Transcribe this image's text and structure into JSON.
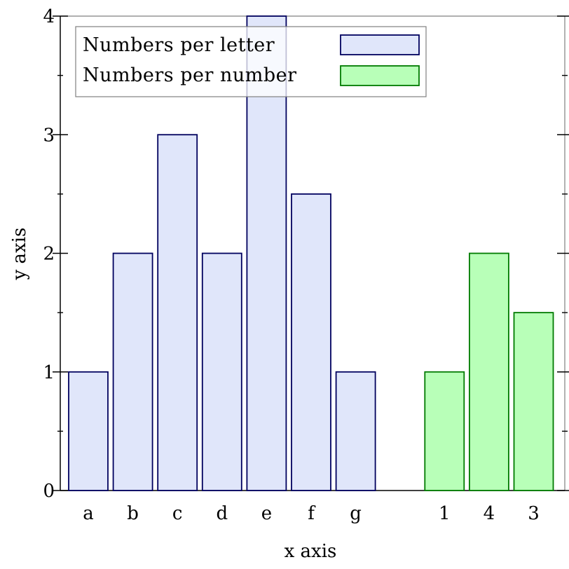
{
  "chart_data": {
    "type": "bar",
    "xlabel": "x axis",
    "ylabel": "y axis",
    "ylim": [
      0,
      4
    ],
    "yticks": [
      "0",
      "1",
      "2",
      "3",
      "4"
    ],
    "grid": false,
    "legend_position": "top-left",
    "series": [
      {
        "name": "Numbers per letter",
        "categories": [
          "a",
          "b",
          "c",
          "d",
          "e",
          "f",
          "g"
        ],
        "values": [
          1,
          2,
          3,
          2,
          4,
          2.5,
          1
        ],
        "fill": "#e0e6fa",
        "stroke": "#00005e"
      },
      {
        "name": "Numbers per number",
        "categories": [
          "1",
          "4",
          "3"
        ],
        "values": [
          1,
          2,
          1.5
        ],
        "fill": "#b8ffb8",
        "stroke": "#007a00"
      }
    ]
  }
}
